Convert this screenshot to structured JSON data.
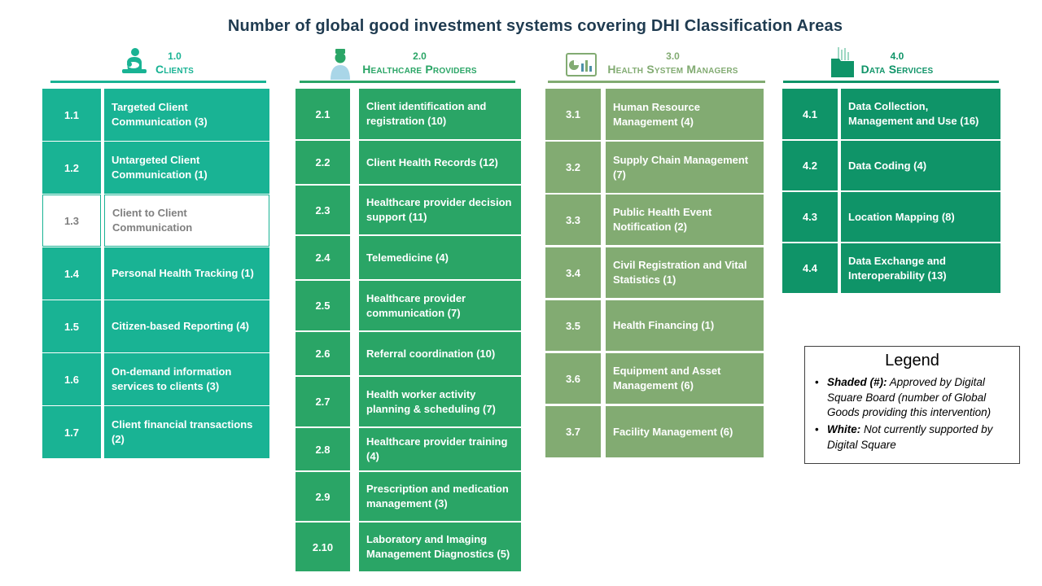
{
  "title": "Number of global good investment systems covering DHI Classification Areas",
  "columns": [
    {
      "number": "1.0",
      "name": "Clients",
      "icon": "mother-child-icon",
      "color": "#19b394",
      "items": [
        {
          "id": "1.1",
          "label": "Targeted Client Communication (3)",
          "approved": true
        },
        {
          "id": "1.2",
          "label": "Untargeted Client Communication (1)",
          "approved": true
        },
        {
          "id": "1.3",
          "label": "Client to Client Communication",
          "approved": false
        },
        {
          "id": "1.4",
          "label": "Personal Health Tracking (1)",
          "approved": true
        },
        {
          "id": "1.5",
          "label": "Citizen-based Reporting (4)",
          "approved": true
        },
        {
          "id": "1.6",
          "label": "On-demand information services to clients (3)",
          "approved": true
        },
        {
          "id": "1.7",
          "label": "Client financial transactions (2)",
          "approved": true
        }
      ]
    },
    {
      "number": "2.0",
      "name": "Healthcare Providers",
      "icon": "nurse-icon",
      "color": "#2aa566",
      "items": [
        {
          "id": "2.1",
          "label": "Client identification and registration (10)",
          "approved": true
        },
        {
          "id": "2.2",
          "label": "Client Health Records (12)",
          "approved": true
        },
        {
          "id": "2.3",
          "label": "Healthcare provider decision support (11)",
          "approved": true
        },
        {
          "id": "2.4",
          "label": "Telemedicine (4)",
          "approved": true
        },
        {
          "id": "2.5",
          "label": "Healthcare provider communication (7)",
          "approved": true
        },
        {
          "id": "2.6",
          "label": "Referral coordination (10)",
          "approved": true
        },
        {
          "id": "2.7",
          "label": "Health worker activity planning & scheduling (7)",
          "approved": true
        },
        {
          "id": "2.8",
          "label": "Healthcare provider training (4)",
          "approved": true
        },
        {
          "id": "2.9",
          "label": "Prescription and medication management (3)",
          "approved": true
        },
        {
          "id": "2.10",
          "label": "Laboratory and Imaging Management Diagnostics (5)",
          "approved": true
        }
      ]
    },
    {
      "number": "3.0",
      "name": "Health System Managers",
      "icon": "dashboard-icon",
      "color": "#82ab72",
      "items": [
        {
          "id": "3.1",
          "label": "Human Resource Management (4)",
          "approved": true
        },
        {
          "id": "3.2",
          "label": "Supply Chain Management (7)",
          "approved": true
        },
        {
          "id": "3.3",
          "label": "Public Health Event Notification (2)",
          "approved": true
        },
        {
          "id": "3.4",
          "label": "Civil Registration and Vital Statistics (1)",
          "approved": true
        },
        {
          "id": "3.5",
          "label": "Health Financing (1)",
          "approved": true
        },
        {
          "id": "3.6",
          "label": "Equipment and Asset Management (6)",
          "approved": true
        },
        {
          "id": "3.7",
          "label": "Facility Management (6)",
          "approved": true
        }
      ]
    },
    {
      "number": "4.0",
      "name": "Data Services",
      "icon": "data-folder-icon",
      "color": "#0f9468",
      "items": [
        {
          "id": "4.1",
          "label": "Data Collection, Management and Use (16)",
          "approved": true
        },
        {
          "id": "4.2",
          "label": "Data Coding (4)",
          "approved": true
        },
        {
          "id": "4.3",
          "label": "Location Mapping (8)",
          "approved": true
        },
        {
          "id": "4.4",
          "label": "Data Exchange and Interoperability (13)",
          "approved": true
        }
      ]
    }
  ],
  "legend": {
    "title": "Legend",
    "items": [
      {
        "term": "Shaded (#):",
        "text": " Approved by Digital Square Board (number of Global Goods providing this intervention)"
      },
      {
        "term": "White:",
        "text": " Not currently supported by Digital Square"
      }
    ]
  }
}
